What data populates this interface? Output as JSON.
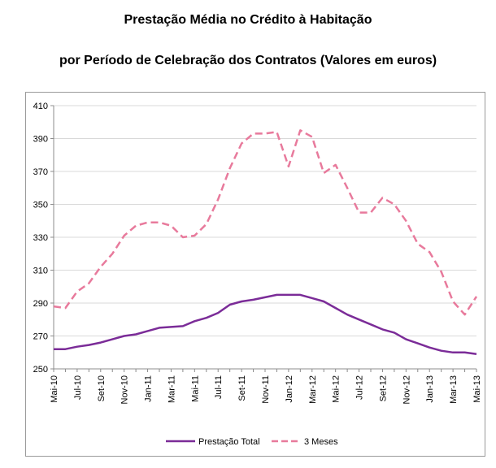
{
  "chart_data": {
    "type": "line",
    "title": "Prestação Média no Crédito à Habitação",
    "subtitle": "por Período de Celebração dos Contratos (Valores em euros)",
    "xlabel": "",
    "ylabel": "",
    "ylim": [
      250,
      410
    ],
    "yticks": [
      250,
      270,
      290,
      310,
      330,
      350,
      370,
      390,
      410
    ],
    "grid": "horizontal",
    "legend_position": "bottom",
    "categories": [
      "Mai-10",
      "Jun-10",
      "Jul-10",
      "Ago-10",
      "Set-10",
      "Out-10",
      "Nov-10",
      "Dez-10",
      "Jan-11",
      "Fev-11",
      "Mar-11",
      "Abr-11",
      "Mai-11",
      "Jun-11",
      "Jul-11",
      "Ago-11",
      "Set-11",
      "Out-11",
      "Nov-11",
      "Dez-11",
      "Jan-12",
      "Fev-12",
      "Mar-12",
      "Abr-12",
      "Mai-12",
      "Jun-12",
      "Jul-12",
      "Ago-12",
      "Set-12",
      "Out-12",
      "Nov-12",
      "Dez-12",
      "Jan-13",
      "Fev-13",
      "Mar-13",
      "Abr-13",
      "Mai-13"
    ],
    "tick_labels": [
      "Mai-10",
      "",
      "Jul-10",
      "",
      "Set-10",
      "",
      "Nov-10",
      "",
      "Jan-11",
      "",
      "Mar-11",
      "",
      "Mai-11",
      "",
      "Jul-11",
      "",
      "Set-11",
      "",
      "Nov-11",
      "",
      "Jan-12",
      "",
      "Mar-12",
      "",
      "Mai-12",
      "",
      "Jul-12",
      "",
      "Set-12",
      "",
      "Nov-12",
      "",
      "Jan-13",
      "",
      "Mar-13",
      "",
      "Mai-13"
    ],
    "series": [
      {
        "name": "Prestação Total",
        "color": "#7b2c98",
        "style": "solid",
        "values": [
          262,
          262,
          263.5,
          264.5,
          266,
          268,
          270,
          271,
          273,
          275,
          275.5,
          276,
          279,
          281,
          284,
          289,
          291,
          292,
          293.5,
          295,
          295,
          295,
          293,
          291,
          287,
          283,
          280,
          277,
          274,
          272,
          268,
          265.5,
          263,
          261,
          260,
          260,
          259
        ]
      },
      {
        "name": "3 Meses",
        "color": "#e87a9c",
        "style": "dashed",
        "values": [
          288,
          287,
          297,
          302,
          312,
          320,
          331,
          337,
          339,
          339,
          337,
          330,
          331,
          338,
          353,
          372,
          387,
          393,
          393,
          394,
          373,
          395,
          391,
          369,
          374,
          360,
          345,
          345,
          354,
          350,
          340,
          326,
          321,
          309,
          291,
          283,
          294
        ]
      }
    ]
  }
}
